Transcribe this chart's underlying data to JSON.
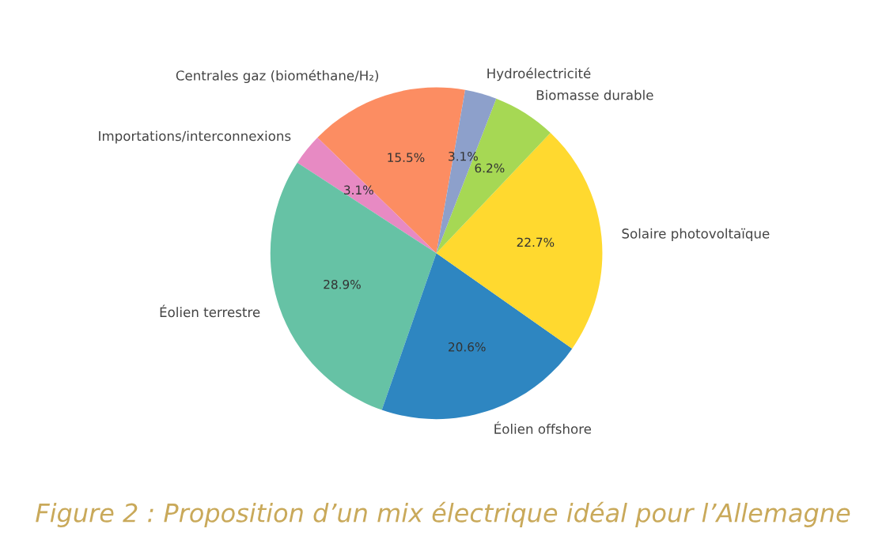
{
  "chart_data": {
    "type": "pie",
    "title": "Figure 2 : Proposition d’un mix électrique idéal pour l’Allemagne",
    "categories": [
      "Centrales gaz (biométhane/H₂)",
      "Importations/interconnexions",
      "Éolien terrestre",
      "Éolien offshore",
      "Solaire photovoltaïque",
      "Biomasse durable",
      "Hydroélectricité"
    ],
    "values": [
      15.5,
      3.1,
      28.9,
      20.6,
      22.7,
      6.2,
      3.1
    ],
    "colors": [
      "#fc8d62",
      "#e78ac3",
      "#66c2a5",
      "#2e86c1",
      "#ffd92f",
      "#a6d854",
      "#8da0cb"
    ],
    "value_labels": [
      "15.5%",
      "3.1%",
      "28.9%",
      "20.6%",
      "22.7%",
      "6.2%",
      "3.1%"
    ]
  }
}
